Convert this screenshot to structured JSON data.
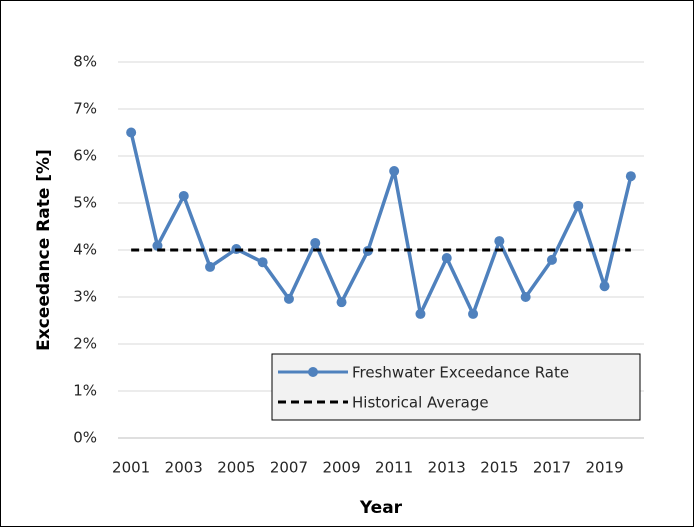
{
  "chart_data": {
    "type": "line",
    "x": [
      2001,
      2002,
      2003,
      2004,
      2005,
      2006,
      2007,
      2008,
      2009,
      2010,
      2011,
      2012,
      2013,
      2014,
      2015,
      2016,
      2017,
      2018,
      2019,
      2020
    ],
    "series": [
      {
        "name": "Freshwater Exceedance Rate",
        "color": "#4f81bd",
        "markers": true,
        "dashed": false,
        "values": [
          6.5,
          4.09,
          5.15,
          3.64,
          4.02,
          3.74,
          2.96,
          4.15,
          2.89,
          3.98,
          5.68,
          2.64,
          3.83,
          2.64,
          4.19,
          3.0,
          3.79,
          4.94,
          3.23,
          5.57
        ]
      },
      {
        "name": "Historical Average",
        "color": "#000000",
        "markers": false,
        "dashed": true,
        "values": [
          4,
          4,
          4,
          4,
          4,
          4,
          4,
          4,
          4,
          4,
          4,
          4,
          4,
          4,
          4,
          4,
          4,
          4,
          4,
          4
        ]
      }
    ],
    "xlim": [
      2000.5,
      2020.5
    ],
    "xticks": [
      2001,
      2003,
      2005,
      2007,
      2009,
      2011,
      2013,
      2015,
      2017,
      2019
    ],
    "ylim": [
      0,
      8
    ],
    "yticks": [
      {
        "value": 0,
        "label": "0%"
      },
      {
        "value": 1,
        "label": "1%"
      },
      {
        "value": 2,
        "label": "2%"
      },
      {
        "value": 3,
        "label": "3%"
      },
      {
        "value": 4,
        "label": "4%"
      },
      {
        "value": 5,
        "label": "5%"
      },
      {
        "value": 6,
        "label": "6%"
      },
      {
        "value": 7,
        "label": "7%"
      },
      {
        "value": 8,
        "label": "8%"
      }
    ],
    "x_label": "Year",
    "y_label": "Exceedance Rate [%]",
    "grid": true,
    "legend": "lower right"
  }
}
